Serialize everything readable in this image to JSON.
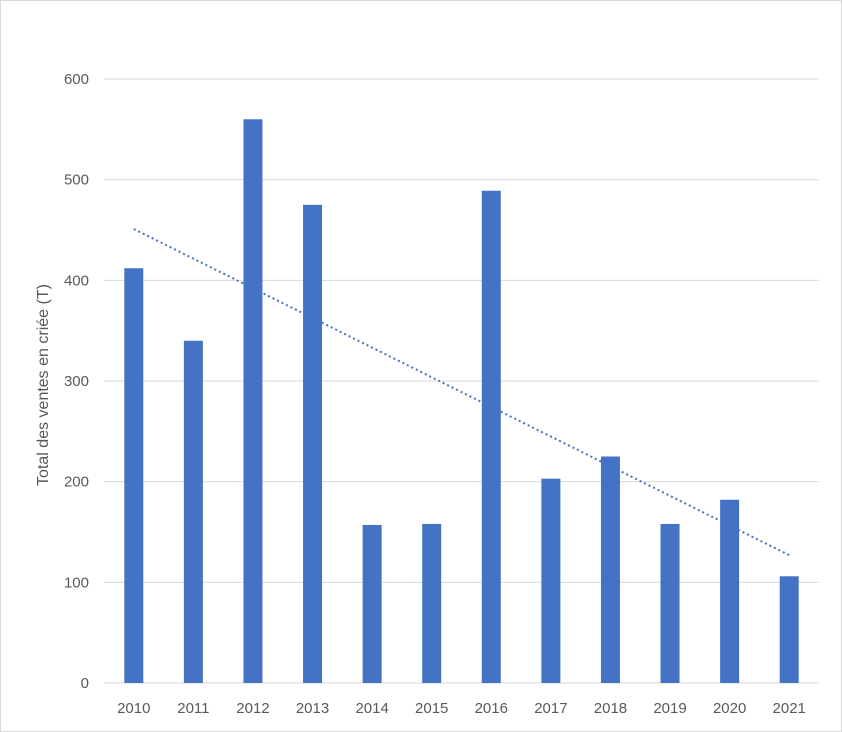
{
  "chart_data": {
    "type": "bar",
    "title": "",
    "xlabel": "",
    "ylabel": "Total des ventes en criée (T)",
    "categories": [
      "2010",
      "2011",
      "2012",
      "2013",
      "2014",
      "2015",
      "2016",
      "2017",
      "2018",
      "2019",
      "2020",
      "2021"
    ],
    "values": [
      412,
      340,
      560,
      475,
      157,
      158,
      489,
      203,
      225,
      158,
      182,
      106
    ],
    "ylim": [
      0,
      600
    ],
    "yticks": [
      0,
      100,
      200,
      300,
      400,
      500,
      600
    ],
    "grid": true,
    "legend": "none",
    "trendline": {
      "type": "linear",
      "style": "dotted",
      "start": 451,
      "end": 127
    },
    "colors": {
      "bar": "#4472C4",
      "grid": "#d9d9d9",
      "text": "#595959"
    }
  }
}
